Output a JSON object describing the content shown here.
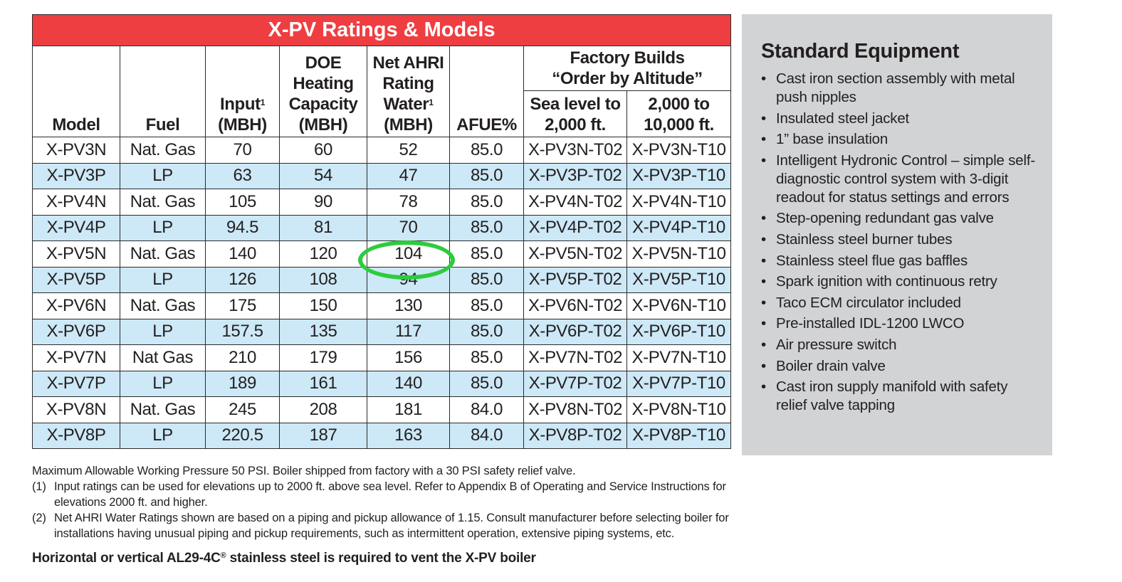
{
  "table": {
    "title": "X-PV Ratings & Models",
    "headers": {
      "model": "Model",
      "fuel": "Fuel",
      "input": [
        "Input",
        "(MBH)"
      ],
      "input_sup": "1",
      "doe": [
        "DOE",
        "Heating",
        "Capacity",
        "(MBH)"
      ],
      "net_ahri": [
        "Net AHRI",
        "Rating",
        "Water",
        "(MBH)"
      ],
      "net_ahri_sup": "1",
      "afue": "AFUE%",
      "factory_builds": [
        "Factory Builds",
        "“Order by Altitude”"
      ],
      "sea_level": [
        "Sea level to",
        "2,000 ft."
      ],
      "altitude": [
        "2,000 to",
        "10,000 ft."
      ]
    },
    "rows": [
      {
        "model": "X-PV3N",
        "fuel": "Nat. Gas",
        "input": "70",
        "doe": "60",
        "net": "52",
        "afue": "85.0",
        "sea": "X-PV3N-T02",
        "alt": "X-PV3N-T10"
      },
      {
        "model": "X-PV3P",
        "fuel": "LP",
        "input": "63",
        "doe": "54",
        "net": "47",
        "afue": "85.0",
        "sea": "X-PV3P-T02",
        "alt": "X-PV3P-T10"
      },
      {
        "model": "X-PV4N",
        "fuel": "Nat. Gas",
        "input": "105",
        "doe": "90",
        "net": "78",
        "afue": "85.0",
        "sea": "X-PV4N-T02",
        "alt": "X-PV4N-T10"
      },
      {
        "model": "X-PV4P",
        "fuel": "LP",
        "input": "94.5",
        "doe": "81",
        "net": "70",
        "afue": "85.0",
        "sea": "X-PV4P-T02",
        "alt": "X-PV4P-T10"
      },
      {
        "model": "X-PV5N",
        "fuel": "Nat. Gas",
        "input": "140",
        "doe": "120",
        "net": "104",
        "afue": "85.0",
        "sea": "X-PV5N-T02",
        "alt": "X-PV5N-T10"
      },
      {
        "model": "X-PV5P",
        "fuel": "LP",
        "input": "126",
        "doe": "108",
        "net": "94",
        "afue": "85.0",
        "sea": "X-PV5P-T02",
        "alt": "X-PV5P-T10"
      },
      {
        "model": "X-PV6N",
        "fuel": "Nat. Gas",
        "input": "175",
        "doe": "150",
        "net": "130",
        "afue": "85.0",
        "sea": "X-PV6N-T02",
        "alt": "X-PV6N-T10"
      },
      {
        "model": "X-PV6P",
        "fuel": "LP",
        "input": "157.5",
        "doe": "135",
        "net": "117",
        "afue": "85.0",
        "sea": "X-PV6P-T02",
        "alt": "X-PV6P-T10"
      },
      {
        "model": "X-PV7N",
        "fuel": "Nat Gas",
        "input": "210",
        "doe": "179",
        "net": "156",
        "afue": "85.0",
        "sea": "X-PV7N-T02",
        "alt": "X-PV7N-T10"
      },
      {
        "model": "X-PV7P",
        "fuel": "LP",
        "input": "189",
        "doe": "161",
        "net": "140",
        "afue": "85.0",
        "sea": "X-PV7P-T02",
        "alt": "X-PV7P-T10"
      },
      {
        "model": "X-PV8N",
        "fuel": "Nat. Gas",
        "input": "245",
        "doe": "208",
        "net": "181",
        "afue": "84.0",
        "sea": "X-PV8N-T02",
        "alt": "X-PV8N-T10"
      },
      {
        "model": "X-PV8P",
        "fuel": "LP",
        "input": "220.5",
        "doe": "187",
        "net": "163",
        "afue": "84.0",
        "sea": "X-PV8P-T02",
        "alt": "X-PV8P-T10"
      }
    ]
  },
  "equipment": {
    "title": "Standard Equipment",
    "items": [
      "Cast iron section assembly with metal push nipples",
      "Insulated steel jacket",
      "1” base insulation",
      "Intelligent Hydronic Control – simple self-diagnostic control system with 3-digit readout for status settings and errors",
      "Step-opening redundant gas valve",
      "Stainless steel burner tubes",
      "Stainless steel flue gas baffles",
      "Spark ignition with continuous retry",
      "Taco ECM circulator included",
      "Pre-installed IDL-1200 LWCO",
      "Air pressure switch",
      "Boiler drain valve",
      "Cast iron supply manifold with safety relief valve tapping"
    ]
  },
  "notes": {
    "pressure": "Maximum Allowable Working Pressure 50 PSI. Boiler shipped from factory with a 30 PSI safety relief valve.",
    "note1_num": "(1)",
    "note1": "Input ratings can be used for elevations up to 2000 ft. above sea level. Refer to Appendix B of Operating and Service Instructions for elevations 2000 ft. and higher.",
    "note2_num": "(2)",
    "note2": "Net AHRI Water Ratings shown are based on a piping and pickup allowance of 1.15. Consult manufacturer before selecting boiler for installations having unusual piping and pickup requirements, such as intermittent operation, extensive piping systems, etc.",
    "vent_prefix": "Horizontal or vertical AL29-4C",
    "vent_reg": "®",
    "vent_suffix": " stainless steel is required to vent the X-PV boiler"
  },
  "highlight": {
    "row": "X-PV5N",
    "column": "Net AHRI Rating Water",
    "value": "104",
    "color": "#2dcc3c"
  },
  "colors": {
    "title_bar": "#ef3e42",
    "alt_row": "#cde8f6",
    "panel": "#d1d3d4"
  }
}
